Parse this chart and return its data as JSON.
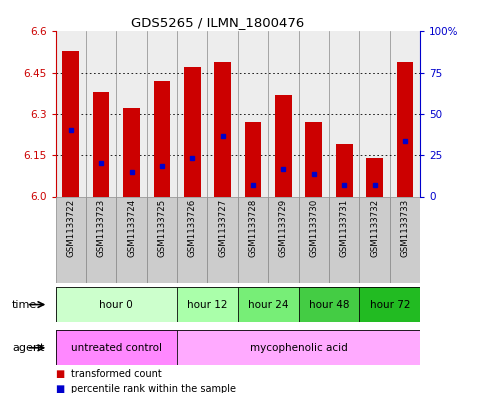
{
  "title": "GDS5265 / ILMN_1800476",
  "samples": [
    "GSM1133722",
    "GSM1133723",
    "GSM1133724",
    "GSM1133725",
    "GSM1133726",
    "GSM1133727",
    "GSM1133728",
    "GSM1133729",
    "GSM1133730",
    "GSM1133731",
    "GSM1133732",
    "GSM1133733"
  ],
  "bar_tops": [
    6.53,
    6.38,
    6.32,
    6.42,
    6.47,
    6.49,
    6.27,
    6.37,
    6.27,
    6.19,
    6.14,
    6.49
  ],
  "bar_bottoms": [
    6.0,
    6.0,
    6.0,
    6.0,
    6.0,
    6.0,
    6.0,
    6.0,
    6.0,
    6.0,
    6.0,
    6.0
  ],
  "blue_positions": [
    6.24,
    6.12,
    6.09,
    6.11,
    6.14,
    6.22,
    6.04,
    6.1,
    6.08,
    6.04,
    6.04,
    6.2
  ],
  "ylim": [
    6.0,
    6.6
  ],
  "yticks_left": [
    6.0,
    6.15,
    6.3,
    6.45,
    6.6
  ],
  "yticks_right_vals": [
    6.0,
    6.15,
    6.3,
    6.45,
    6.6
  ],
  "ytick_labels_right": [
    "0",
    "25",
    "50",
    "75",
    "100%"
  ],
  "bar_color": "#cc0000",
  "blue_color": "#0000cc",
  "time_groups": [
    {
      "label": "hour 0",
      "start": 0,
      "end": 3,
      "color": "#ccffcc"
    },
    {
      "label": "hour 12",
      "start": 4,
      "end": 5,
      "color": "#aaffaa"
    },
    {
      "label": "hour 24",
      "start": 6,
      "end": 7,
      "color": "#77ee77"
    },
    {
      "label": "hour 48",
      "start": 8,
      "end": 9,
      "color": "#44cc44"
    },
    {
      "label": "hour 72",
      "start": 10,
      "end": 11,
      "color": "#22bb22"
    }
  ],
  "agent_groups": [
    {
      "label": "untreated control",
      "start": 0,
      "end": 3,
      "color": "#ff88ff"
    },
    {
      "label": "mycophenolic acid",
      "start": 4,
      "end": 11,
      "color": "#ffaaff"
    }
  ],
  "legend_red_label": "transformed count",
  "legend_blue_label": "percentile rank within the sample",
  "time_label": "time",
  "agent_label": "agent",
  "ylabel_left_color": "#cc0000",
  "ylabel_right_color": "#0000cc",
  "sample_bg_color": "#cccccc",
  "sample_border_color": "#888888"
}
